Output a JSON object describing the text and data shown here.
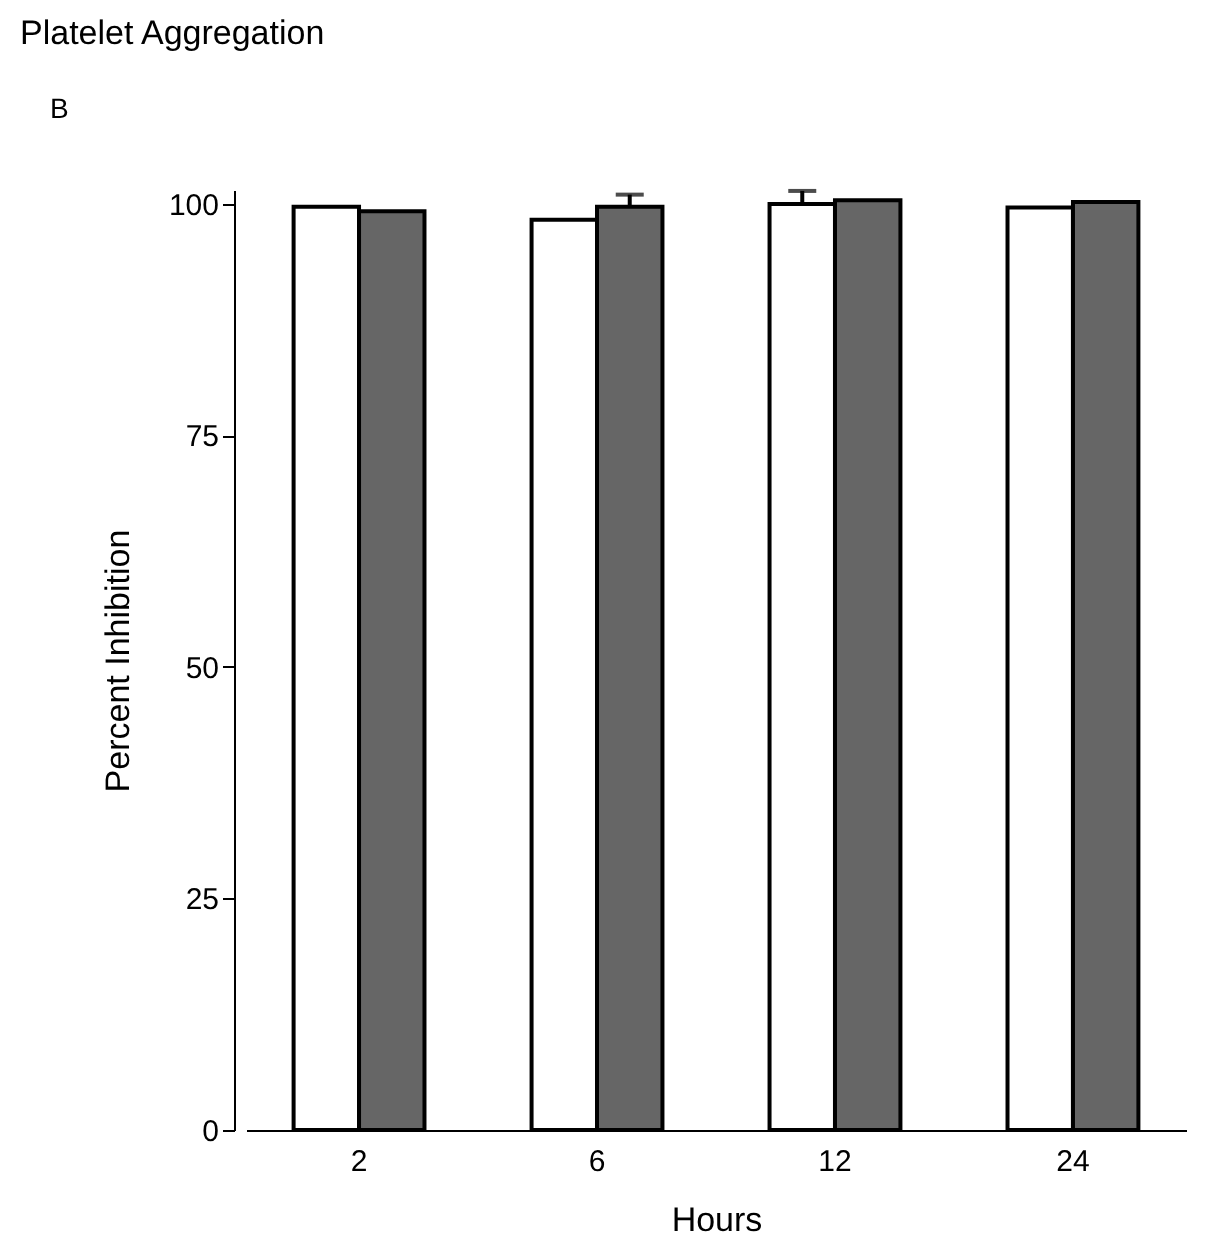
{
  "chart_data": {
    "type": "bar",
    "title": "Platelet Aggregation",
    "xlabel": "Hours",
    "ylabel": "Percent Inhibition",
    "annotations": [
      "B"
    ],
    "categories": [
      "2",
      "6",
      "12",
      "24"
    ],
    "series": [
      {
        "color": "#ffffff",
        "values": [
          99.7,
          98.3,
          100,
          99.6
        ],
        "errors": [
          null,
          null,
          [
            100,
            101.4
          ],
          null
        ]
      },
      {
        "color": "#666666",
        "values": [
          99.2,
          99.7,
          100.4,
          100.2
        ],
        "errors": [
          null,
          [
            99.7,
            101
          ],
          null,
          null
        ]
      }
    ],
    "ylim": [
      0,
      101.5
    ],
    "yticks": [
      0,
      25,
      50,
      75,
      100
    ],
    "grid": false,
    "legend": false
  }
}
